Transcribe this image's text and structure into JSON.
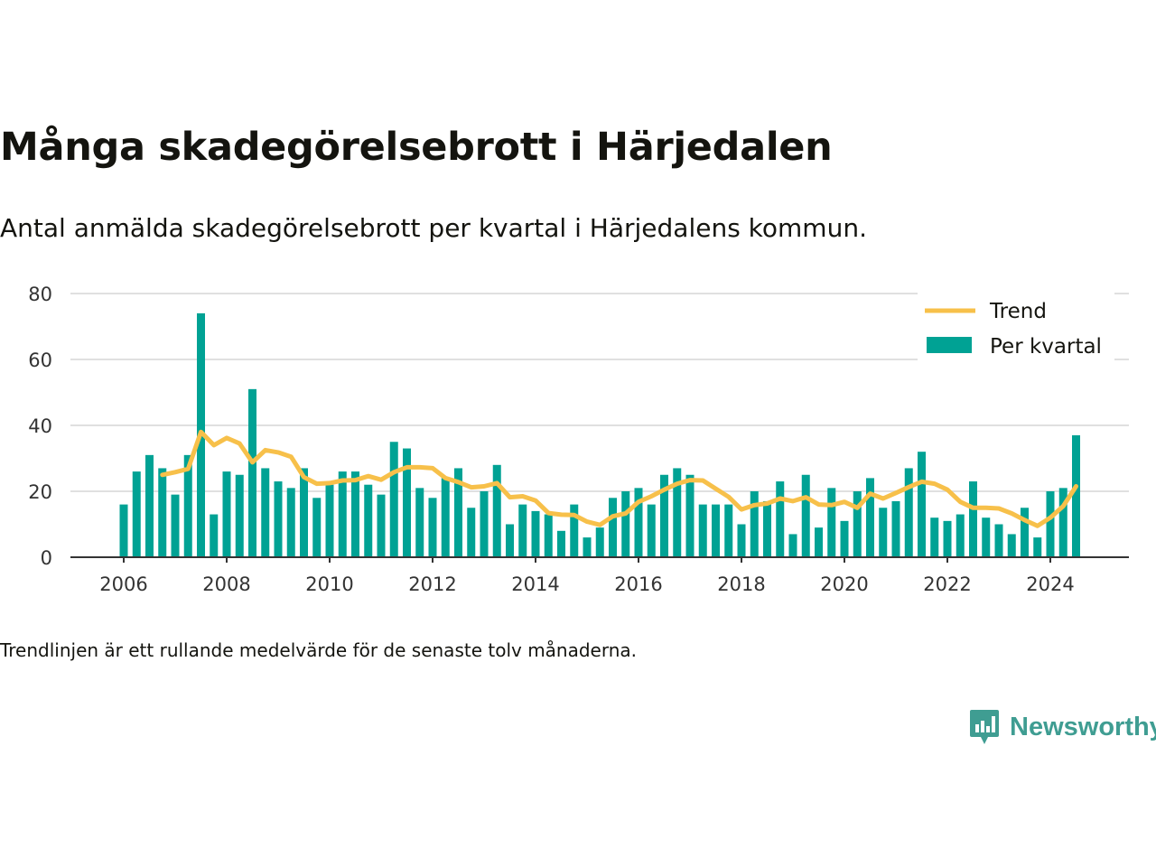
{
  "title": "Många skadegörelsebrott i Härjedalen",
  "subtitle": "Antal anmälda skadegörelsebrott per kvartal i Härjedalens kommun.",
  "footnote": "Trendlinjen är ett rullande medelvärde för de senaste tolv månaderna.",
  "brand": "Newsworthy",
  "colors": {
    "bar": "#00a294",
    "trend": "#f7c04a",
    "grid": "#e0e0e0",
    "axis": "#333333",
    "brand": "#3f9d92"
  },
  "chart_data": {
    "type": "bar",
    "x_start": "2006-Q1",
    "x_ticks": [
      "2006",
      "2008",
      "2010",
      "2012",
      "2014",
      "2016",
      "2018",
      "2020",
      "2022",
      "2024"
    ],
    "y_ticks": [
      0,
      20,
      40,
      60,
      80
    ],
    "ylim": [
      0,
      80
    ],
    "grid": true,
    "legend_position": "top-right",
    "series": [
      {
        "name": "Per kvartal",
        "type": "bar",
        "values": [
          16,
          26,
          31,
          27,
          19,
          31,
          74,
          13,
          26,
          25,
          51,
          27,
          23,
          21,
          27,
          18,
          22,
          26,
          26,
          22,
          19,
          35,
          33,
          21,
          18,
          24,
          27,
          15,
          20,
          28,
          10,
          16,
          14,
          13,
          8,
          16,
          6,
          9,
          18,
          20,
          21,
          16,
          25,
          27,
          25,
          16,
          16,
          16,
          10,
          20,
          17,
          23,
          7,
          25,
          9,
          21,
          11,
          20,
          24,
          15,
          17,
          27,
          32,
          12,
          11,
          13,
          23,
          12,
          10,
          7,
          15,
          6,
          20,
          21,
          37
        ]
      },
      {
        "name": "Trend",
        "type": "line",
        "values": [
          null,
          null,
          null,
          25,
          25.8,
          26.8,
          38,
          34,
          36.2,
          34.5,
          28.8,
          32.5,
          31.8,
          30.5,
          24.3,
          22.3,
          22.5,
          23.3,
          23.4,
          24.6,
          23.5,
          25.8,
          27.3,
          27.3,
          27,
          24,
          22.8,
          21.2,
          21.5,
          22.5,
          18.2,
          18.5,
          17.2,
          13.4,
          12.9,
          12.8,
          10.8,
          9.8,
          12.4,
          13.3,
          16.8,
          18.5,
          20.5,
          22.3,
          23.4,
          23.3,
          20.8,
          18.3,
          14.5,
          15.8,
          16.3,
          17.8,
          17,
          18.2,
          16,
          15.8,
          16.8,
          15,
          19.3,
          17.8,
          19.5,
          21.3,
          22.9,
          22.3,
          20.5,
          16.8,
          15,
          15,
          14.8,
          13.3,
          11.3,
          9.5,
          12,
          15.5,
          21.5
        ]
      }
    ]
  }
}
